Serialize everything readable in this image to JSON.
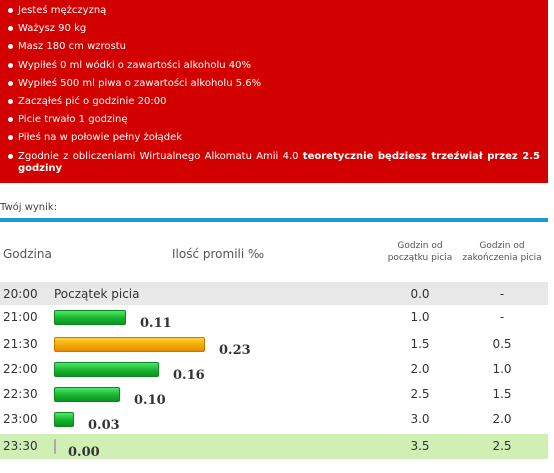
{
  "summary": {
    "items": [
      "Jesteś mężczyzną",
      "Ważysz 90 kg",
      "Masz 180 cm wzrostu",
      "Wypiłeś 0 ml wódki o zawartości alkoholu 40%",
      "Wypiłeś 500 ml piwa o zawartości alkoholu 5.6%",
      "Zacząłeś pić o godzinie 20:00",
      "Picie trwało 1 godzinę",
      "Piłeś na w połowie pełny żołądek"
    ],
    "last_prefix": "Zgodnie z obliczeniami Wirtualnego Alkomatu Amii 4.0 ",
    "last_bold": "teoretycznie będziesz trzeźwiał przez 2.5 godziny"
  },
  "result_label": "Twój wynik:",
  "table": {
    "header_time": "Godzina",
    "header_promil": "Ilość promili ‰",
    "header_start_l1": "Godzin od",
    "header_start_l2": "początku picia",
    "header_end_l1": "Godzin od",
    "header_end_l2": "zakończenia picia",
    "start_label": "Początek picia",
    "rows": [
      {
        "time": "20:00",
        "promil": "",
        "start": "0.0",
        "end": "-"
      },
      {
        "time": "21:00",
        "promil": "0.11",
        "start": "1.0",
        "end": "-"
      },
      {
        "time": "21:30",
        "promil": "0.23",
        "start": "1.5",
        "end": "0.5"
      },
      {
        "time": "22:00",
        "promil": "0.16",
        "start": "2.0",
        "end": "1.0"
      },
      {
        "time": "22:30",
        "promil": "0.10",
        "start": "2.5",
        "end": "1.5"
      },
      {
        "time": "23:00",
        "promil": "0.03",
        "start": "3.0",
        "end": "2.0"
      },
      {
        "time": "23:30",
        "promil": "0.00",
        "start": "3.5",
        "end": "2.5"
      }
    ]
  },
  "colors": {
    "summary_bg": "#d30000",
    "accent_line": "#1a9ad6",
    "bar_green": "#18b42e",
    "bar_peak": "#f5a800",
    "sober_row": "#cfefb4"
  }
}
